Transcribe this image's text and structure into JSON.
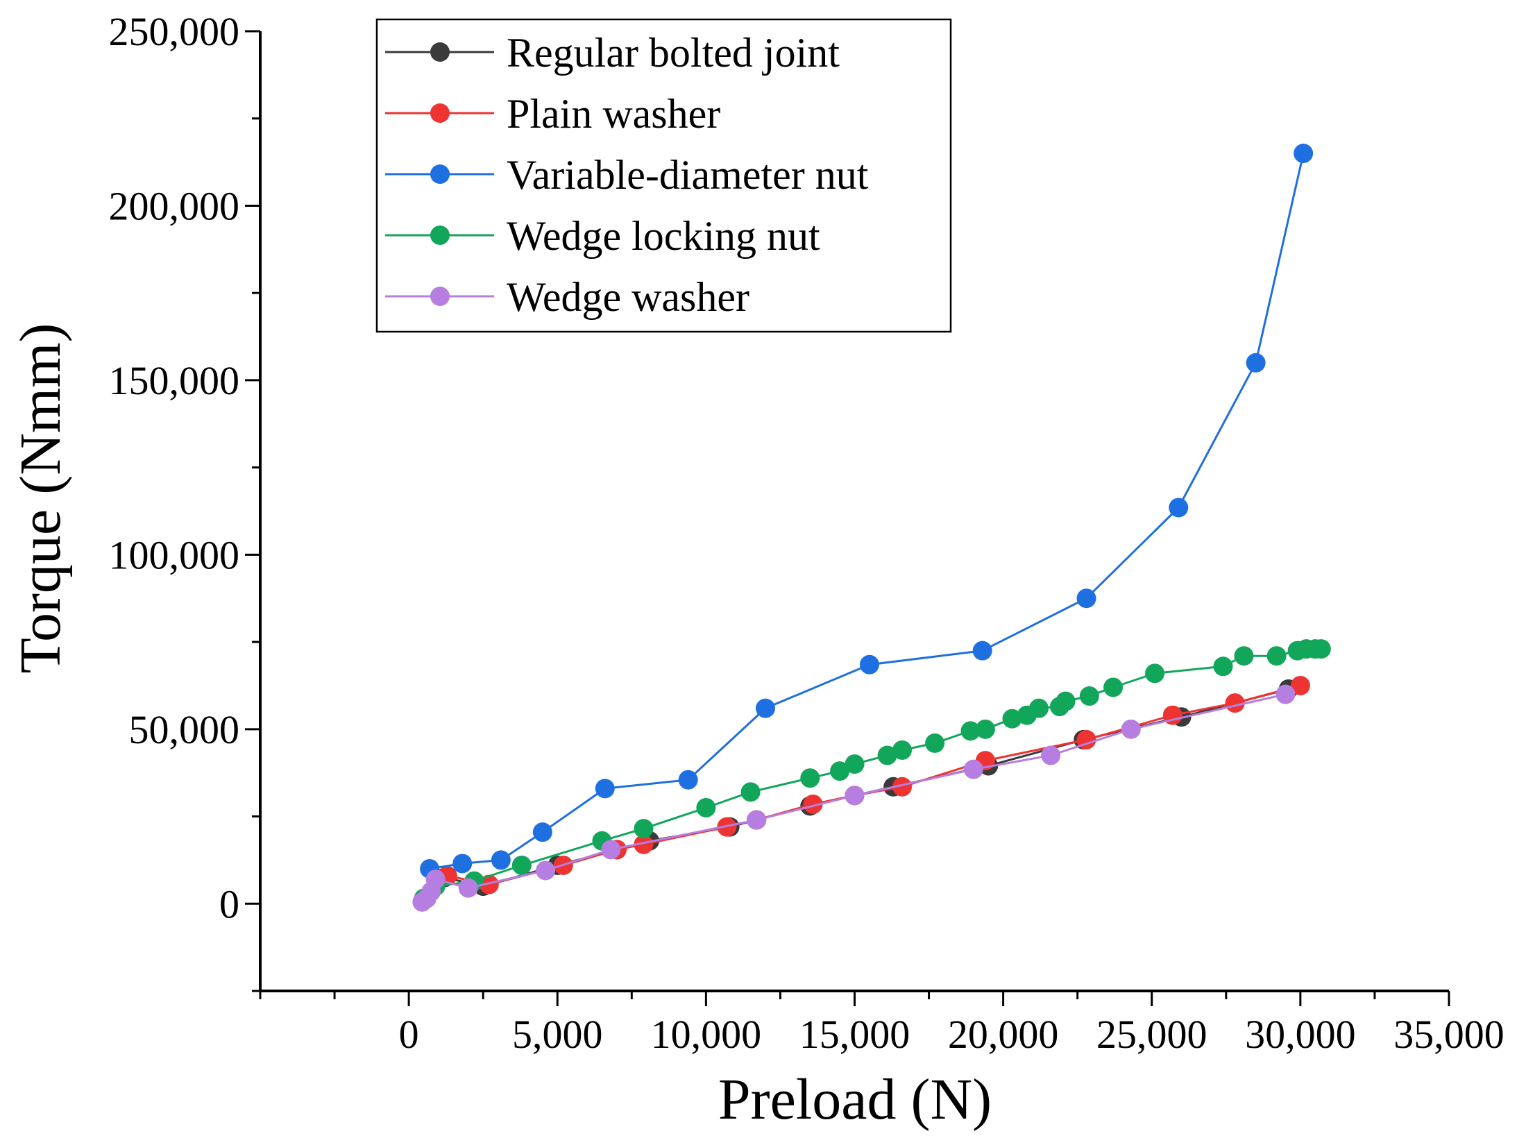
{
  "chart_data": {
    "type": "line",
    "xlabel": "Preload (N)",
    "ylabel": "Torque (Nmm)",
    "xlim": [
      -5000,
      35000
    ],
    "ylim": [
      -25000,
      250000
    ],
    "xticks": [
      0,
      5000,
      10000,
      15000,
      20000,
      25000,
      30000,
      35000
    ],
    "xtick_labels": [
      "0",
      "5,000",
      "10,000",
      "15,000",
      "20,000",
      "25,000",
      "30,000",
      "35,000"
    ],
    "yticks": [
      0,
      50000,
      100000,
      150000,
      200000,
      250000
    ],
    "ytick_labels": [
      "0",
      "50,000",
      "100,000",
      "150,000",
      "200,000",
      "250,000"
    ],
    "legend_position": "top-left",
    "series": [
      {
        "name": "Regular bolted joint",
        "color": "#3a3a3a",
        "x": [
          500,
          1200,
          2500,
          5000,
          7000,
          8100,
          10800,
          11700,
          13500,
          15000,
          16300,
          19500,
          22700,
          26000,
          29600
        ],
        "y": [
          1000,
          7500,
          5000,
          11000,
          15500,
          18000,
          22000,
          24000,
          28000,
          31000,
          33500,
          39500,
          47000,
          53500,
          61500
        ]
      },
      {
        "name": "Plain washer",
        "color": "#ee3333",
        "x": [
          600,
          1300,
          2700,
          5200,
          7000,
          7900,
          10700,
          11700,
          13600,
          15000,
          16600,
          19400,
          22800,
          25700,
          27800,
          30000
        ],
        "y": [
          1500,
          8000,
          5500,
          11000,
          15500,
          17000,
          22000,
          24000,
          28500,
          31000,
          33500,
          41000,
          47000,
          54000,
          57500,
          62500
        ]
      },
      {
        "name": "Variable-diameter nut",
        "color": "#1e6fe0",
        "x": [
          700,
          1800,
          3100,
          4500,
          6600,
          9400,
          12000,
          15500,
          19300,
          22800,
          25900,
          28500,
          30100
        ],
        "y": [
          10000,
          11500,
          12500,
          20500,
          33000,
          35500,
          56000,
          68500,
          72500,
          87500,
          113500,
          155000,
          215000
        ]
      },
      {
        "name": "Wedge locking nut",
        "color": "#12a65a",
        "x": [
          500,
          900,
          2200,
          3800,
          6500,
          7900,
          10000,
          11500,
          13500,
          14500,
          15000,
          16100,
          16600,
          17700,
          18900,
          19400,
          20300,
          20800,
          21200,
          21900,
          22100,
          22900,
          23700,
          25100,
          27400,
          28100,
          29200,
          29900,
          30200,
          30500,
          30700
        ],
        "y": [
          1500,
          5000,
          6500,
          11000,
          18000,
          21500,
          27500,
          32000,
          36000,
          38000,
          40000,
          42500,
          44000,
          46000,
          49500,
          50000,
          53000,
          54000,
          56000,
          56500,
          58000,
          59500,
          62000,
          66000,
          68000,
          71000,
          71000,
          72500,
          73000,
          73000,
          73000
        ]
      },
      {
        "name": "Wedge washer",
        "color": "#b57ee0",
        "x": [
          450,
          600,
          750,
          900,
          2000,
          4600,
          6800,
          11700,
          15000,
          19000,
          21600,
          24300,
          29500
        ],
        "y": [
          500,
          1500,
          3500,
          7000,
          4500,
          9500,
          15500,
          24000,
          31000,
          38500,
          42500,
          50000,
          60000
        ]
      }
    ]
  }
}
